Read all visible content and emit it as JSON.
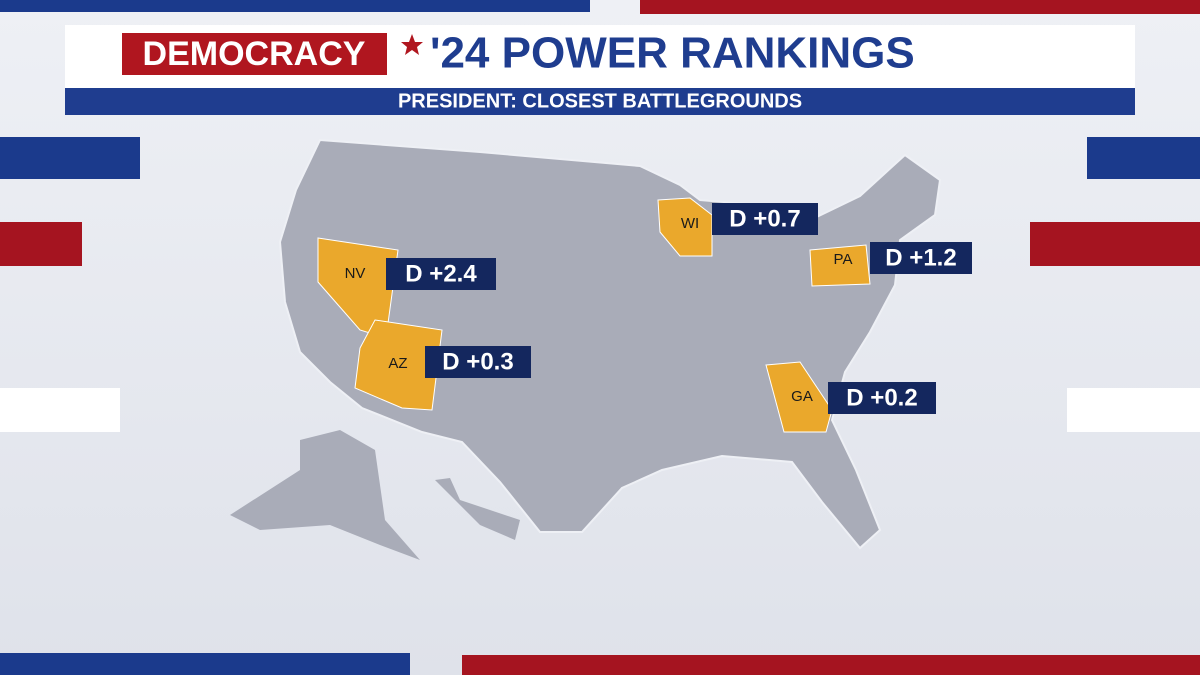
{
  "header": {
    "brand": "DEMOCRACY",
    "title": "'24 POWER RANKINGS",
    "subtitle": "PRESIDENT: CLOSEST BATTLEGROUNDS"
  },
  "states": [
    {
      "abbr": "NV",
      "label": "D +2.4"
    },
    {
      "abbr": "AZ",
      "label": "D +0.3"
    },
    {
      "abbr": "WI",
      "label": "D +0.7"
    },
    {
      "abbr": "PA",
      "label": "D +1.2"
    },
    {
      "abbr": "GA",
      "label": "D +0.2"
    }
  ]
}
